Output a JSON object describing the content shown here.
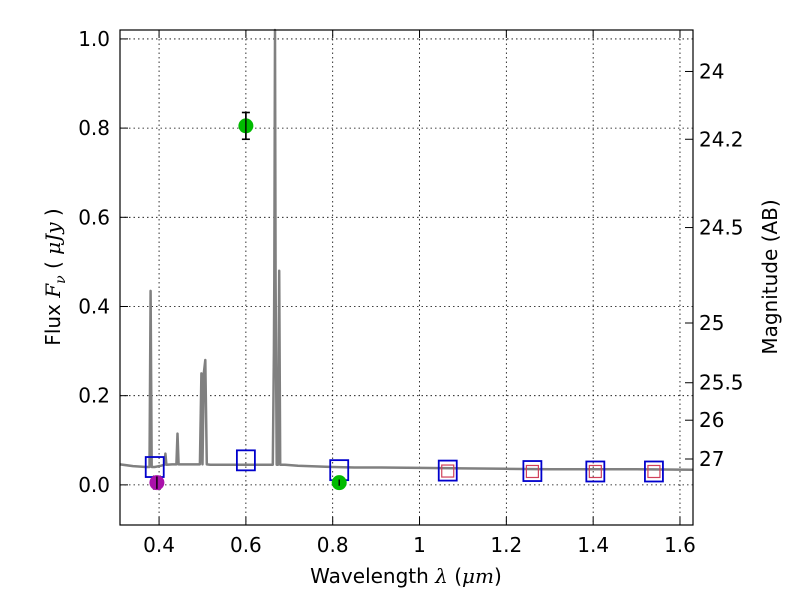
{
  "chart_data": {
    "type": "line",
    "title": "",
    "xlabel": {
      "prefix": "Wavelength  ",
      "symbol": "λ",
      "unit_open": " (",
      "unit": "μm",
      "unit_close": ")"
    },
    "ylabel": {
      "prefix": "Flux  ",
      "symbol": "F",
      "subscript": "ν",
      "unit_open": "  ( ",
      "unit": "μJy",
      "unit_close": " )"
    },
    "y2label": "Magnitude (AB)",
    "xlim": [
      0.31,
      1.63
    ],
    "ylim": [
      -0.09,
      1.02
    ],
    "grid": true,
    "xticks": [
      {
        "value": 0.4,
        "label": "0.4"
      },
      {
        "value": 0.6,
        "label": "0.6"
      },
      {
        "value": 0.8,
        "label": "0.8"
      },
      {
        "value": 1.0,
        "label": "1"
      },
      {
        "value": 1.2,
        "label": "1.2"
      },
      {
        "value": 1.4,
        "label": "1.4"
      },
      {
        "value": 1.6,
        "label": "1.6"
      }
    ],
    "yticks": [
      {
        "value": 0.0,
        "label": "0.0"
      },
      {
        "value": 0.2,
        "label": "0.2"
      },
      {
        "value": 0.4,
        "label": "0.4"
      },
      {
        "value": 0.6,
        "label": "0.6"
      },
      {
        "value": 0.8,
        "label": "0.8"
      },
      {
        "value": 1.0,
        "label": "1.0"
      }
    ],
    "y2ticks": [
      {
        "flux": 0.927,
        "label": "24"
      },
      {
        "flux": 0.775,
        "label": "24.2"
      },
      {
        "flux": 0.577,
        "label": "24.5"
      },
      {
        "flux": 0.363,
        "label": "25"
      },
      {
        "flux": 0.229,
        "label": "25.5"
      },
      {
        "flux": 0.145,
        "label": "26"
      },
      {
        "flux": 0.058,
        "label": "27"
      }
    ],
    "series": [
      {
        "name": "model spectrum",
        "kind": "line",
        "color": "#808080",
        "x": [
          0.31,
          0.34,
          0.37,
          0.378,
          0.3805,
          0.383,
          0.39,
          0.405,
          0.412,
          0.4145,
          0.417,
          0.43,
          0.44,
          0.4425,
          0.445,
          0.47,
          0.49,
          0.494,
          0.4975,
          0.5,
          0.503,
          0.5065,
          0.51,
          0.518,
          0.55,
          0.6,
          0.63,
          0.655,
          0.662,
          0.6645,
          0.6655,
          0.667,
          0.6685,
          0.6695,
          0.671,
          0.674,
          0.6767,
          0.679,
          0.685,
          0.69,
          0.72,
          0.8,
          0.85,
          0.9,
          1.0,
          1.1,
          1.2,
          1.3,
          1.4,
          1.5,
          1.63
        ],
        "y": [
          0.046,
          0.042,
          0.04,
          0.04,
          0.435,
          0.04,
          0.04,
          0.043,
          0.045,
          0.07,
          0.045,
          0.046,
          0.046,
          0.115,
          0.046,
          0.046,
          0.046,
          0.046,
          0.25,
          0.046,
          0.25,
          0.28,
          0.046,
          0.045,
          0.045,
          0.045,
          0.045,
          0.045,
          0.045,
          0.3,
          0.46,
          1.02,
          0.46,
          0.26,
          0.045,
          0.045,
          0.48,
          0.045,
          0.045,
          0.045,
          0.043,
          0.04,
          0.039,
          0.039,
          0.038,
          0.037,
          0.036,
          0.035,
          0.035,
          0.035,
          0.034
        ]
      },
      {
        "name": "model photometry",
        "kind": "open-square",
        "color": "#0000cc",
        "x": [
          0.39,
          0.6,
          0.815,
          1.065,
          1.26,
          1.405,
          1.54
        ],
        "y": [
          0.04,
          0.055,
          0.033,
          0.032,
          0.031,
          0.03,
          0.03
        ]
      },
      {
        "name": "filter markers",
        "kind": "small-square",
        "color": "#d0405a",
        "x": [
          1.065,
          1.26,
          1.405,
          1.54
        ],
        "y": [
          0.031,
          0.03,
          0.03,
          0.03
        ]
      },
      {
        "name": "observed detections",
        "kind": "filled-circle",
        "color": "#00bb00",
        "x": [
          0.6,
          0.815
        ],
        "y": [
          0.805,
          0.005
        ],
        "yerr": [
          0.03,
          0.007
        ]
      },
      {
        "name": "observed blue band",
        "kind": "filled-circle",
        "color": "#aa11aa",
        "x": [
          0.395
        ],
        "y": [
          0.005
        ],
        "yerr": [
          0.014
        ]
      }
    ]
  }
}
